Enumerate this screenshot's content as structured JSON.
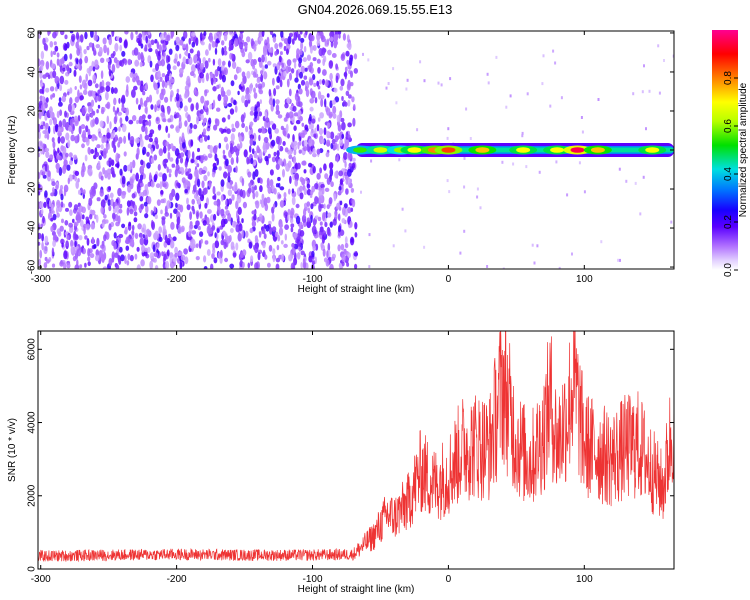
{
  "title": "GN04.2026.069.15.55.E13",
  "colors": {
    "snr_line": "#ee3333",
    "colormap": [
      "#ffffff",
      "#c9a6ff",
      "#7a1fff",
      "#2000ff",
      "#0090ff",
      "#00e8e0",
      "#00e000",
      "#c8ff00",
      "#ffff00",
      "#ff8000",
      "#ff0000",
      "#ff00a0"
    ]
  },
  "chart_data": [
    {
      "type": "heatmap",
      "title": "",
      "xlabel": "Height of straight line (km)",
      "ylabel": "Frequency (Hz)",
      "xlim": [
        -302,
        166
      ],
      "ylim": [
        -61,
        61
      ],
      "xticks": [
        -300,
        -200,
        -100,
        0,
        100
      ],
      "yticks": [
        -60,
        -40,
        -20,
        0,
        20,
        40,
        60
      ],
      "colorbar": {
        "label": "Normalized spectral amplitude",
        "range": [
          0,
          1
        ],
        "ticks": [
          0.0,
          0.2,
          0.4,
          0.6,
          0.8
        ]
      },
      "regions": [
        {
          "description": "broadband noise",
          "x_range": [
            -302,
            -68
          ],
          "freq_range": [
            -61,
            61
          ],
          "amplitude": 0.15
        },
        {
          "description": "signal band",
          "x_range": [
            -68,
            166
          ],
          "freq_range": [
            -4,
            4
          ],
          "amplitude": 0.6
        }
      ],
      "peaks": [
        {
          "x": -65,
          "amplitude": 0.55
        },
        {
          "x": -50,
          "amplitude": 0.65
        },
        {
          "x": -35,
          "amplitude": 0.6
        },
        {
          "x": -25,
          "amplitude": 0.7
        },
        {
          "x": -10,
          "amplitude": 0.8
        },
        {
          "x": 0,
          "amplitude": 0.85
        },
        {
          "x": 25,
          "amplitude": 0.75
        },
        {
          "x": 55,
          "amplitude": 0.7
        },
        {
          "x": 80,
          "amplitude": 0.7
        },
        {
          "x": 95,
          "amplitude": 0.95
        },
        {
          "x": 110,
          "amplitude": 0.75
        },
        {
          "x": 150,
          "amplitude": 0.7
        }
      ]
    },
    {
      "type": "line",
      "title": "",
      "xlabel": "Height of straight line (km)",
      "ylabel": "SNR (10 * v/v)",
      "xlim": [
        -302,
        166
      ],
      "ylim": [
        0,
        6500
      ],
      "xticks": [
        -300,
        -200,
        -100,
        0,
        100
      ],
      "yticks": [
        0,
        2000,
        4000,
        6000
      ],
      "series": [
        {
          "envelope": [
            {
              "x": -302,
              "y": 350
            },
            {
              "x": -250,
              "y": 380
            },
            {
              "x": -200,
              "y": 400
            },
            {
              "x": -150,
              "y": 380
            },
            {
              "x": -100,
              "y": 380
            },
            {
              "x": -70,
              "y": 400
            },
            {
              "x": -55,
              "y": 900
            },
            {
              "x": -45,
              "y": 1500
            },
            {
              "x": -40,
              "y": 1400
            },
            {
              "x": -30,
              "y": 1800
            },
            {
              "x": -20,
              "y": 2700
            },
            {
              "x": -10,
              "y": 2300
            },
            {
              "x": 0,
              "y": 2600
            },
            {
              "x": 10,
              "y": 3300
            },
            {
              "x": 20,
              "y": 3400
            },
            {
              "x": 30,
              "y": 3300
            },
            {
              "x": 40,
              "y": 5100
            },
            {
              "x": 50,
              "y": 3500
            },
            {
              "x": 60,
              "y": 2900
            },
            {
              "x": 70,
              "y": 3700
            },
            {
              "x": 75,
              "y": 4700
            },
            {
              "x": 80,
              "y": 3400
            },
            {
              "x": 88,
              "y": 4300
            },
            {
              "x": 92,
              "y": 5200
            },
            {
              "x": 100,
              "y": 3400
            },
            {
              "x": 110,
              "y": 3200
            },
            {
              "x": 120,
              "y": 3000
            },
            {
              "x": 130,
              "y": 3300
            },
            {
              "x": 140,
              "y": 3400
            },
            {
              "x": 150,
              "y": 2700
            },
            {
              "x": 158,
              "y": 2200
            },
            {
              "x": 166,
              "y": 4200
            }
          ]
        }
      ]
    }
  ]
}
